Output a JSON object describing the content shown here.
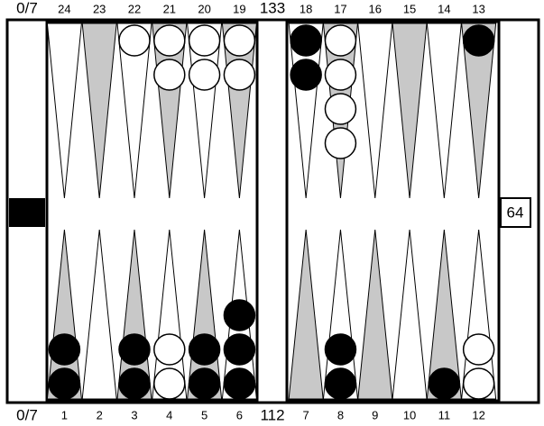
{
  "top_left": "0/7",
  "bottom_left": "0/7",
  "top_pip": "133",
  "bottom_pip": "112",
  "cube": "64",
  "top_points": [
    {
      "label": "24",
      "white": 0,
      "black": 0
    },
    {
      "label": "23",
      "white": 0,
      "black": 0
    },
    {
      "label": "22",
      "white": 1,
      "black": 0
    },
    {
      "label": "21",
      "white": 2,
      "black": 0
    },
    {
      "label": "20",
      "white": 2,
      "black": 0
    },
    {
      "label": "19",
      "white": 2,
      "black": 0
    },
    {
      "label": "18",
      "white": 0,
      "black": 2
    },
    {
      "label": "17",
      "white": 4,
      "black": 0
    },
    {
      "label": "16",
      "white": 0,
      "black": 0
    },
    {
      "label": "15",
      "white": 0,
      "black": 0
    },
    {
      "label": "14",
      "white": 0,
      "black": 0
    },
    {
      "label": "13",
      "white": 0,
      "black": 1
    }
  ],
  "bottom_points": [
    {
      "label": "1",
      "white": 0,
      "black": 2
    },
    {
      "label": "2",
      "white": 0,
      "black": 0
    },
    {
      "label": "3",
      "white": 0,
      "black": 2
    },
    {
      "label": "4",
      "white": 2,
      "black": 0
    },
    {
      "label": "5",
      "white": 0,
      "black": 2
    },
    {
      "label": "6",
      "white": 0,
      "black": 3
    },
    {
      "label": "7",
      "white": 0,
      "black": 0
    },
    {
      "label": "8",
      "white": 0,
      "black": 2
    },
    {
      "label": "9",
      "white": 0,
      "black": 0
    },
    {
      "label": "10",
      "white": 0,
      "black": 0
    },
    {
      "label": "11",
      "white": 0,
      "black": 1
    },
    {
      "label": "12",
      "white": 2,
      "black": 0
    }
  ]
}
